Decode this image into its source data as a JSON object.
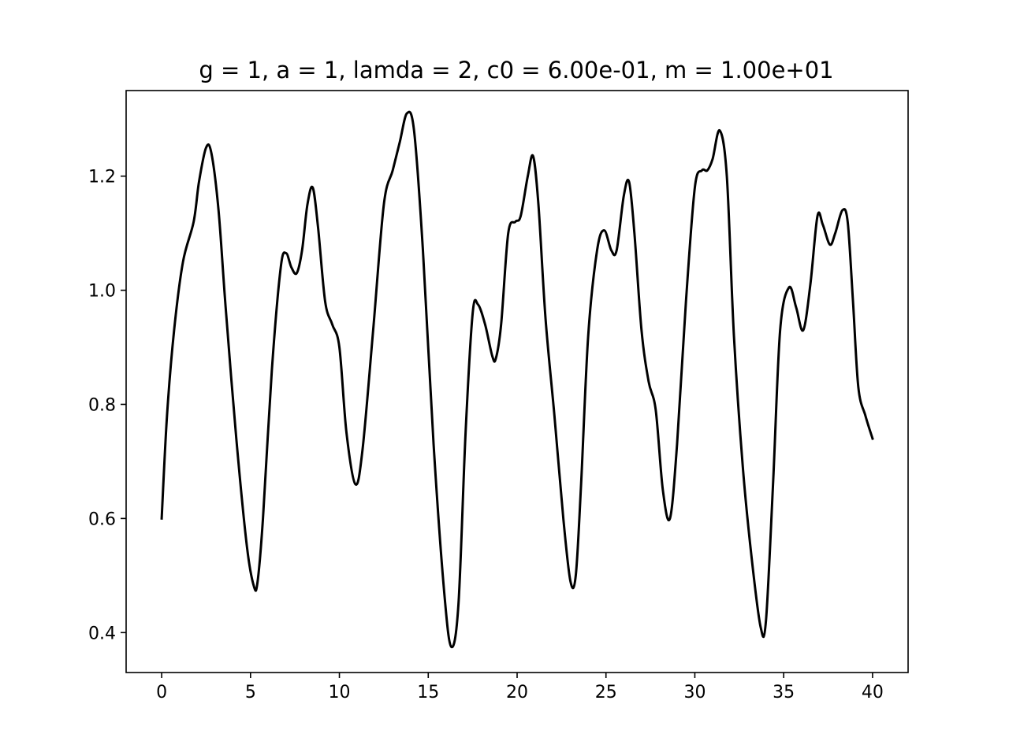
{
  "chart_data": {
    "type": "line",
    "title": "g = 1, a = 1, lamda = 2, c0 = 6.00e-01, m = 1.00e+01",
    "xlabel": "",
    "ylabel": "",
    "xlim": [
      -2,
      42
    ],
    "ylim": [
      0.33,
      1.35
    ],
    "xticks": [
      0,
      5,
      10,
      15,
      20,
      25,
      30,
      35,
      40
    ],
    "xtick_labels": [
      "0",
      "5",
      "10",
      "15",
      "20",
      "25",
      "30",
      "35",
      "40"
    ],
    "yticks": [
      0.4,
      0.6,
      0.8,
      1.0,
      1.2
    ],
    "ytick_labels": [
      "0.4",
      "0.6",
      "0.8",
      "1.0",
      "1.2"
    ],
    "grid": false,
    "legend": false,
    "colors": {
      "line": "#000000",
      "axes": "#000000",
      "background": "#ffffff"
    },
    "series": [
      {
        "x": [
          0,
          0.3,
          0.7,
          1.2,
          1.8,
          2.1,
          2.5,
          2.8,
          3.2,
          3.6,
          4.2,
          4.8,
          5.2,
          5.4,
          5.7,
          6.2,
          6.7,
          7.0,
          7.3,
          7.6,
          7.9,
          8.2,
          8.5,
          8.8,
          9.2,
          9.6,
          10.0,
          10.4,
          10.9,
          11.3,
          11.9,
          12.5,
          13.0,
          13.4,
          13.8,
          14.2,
          14.7,
          15.3,
          15.9,
          16.3,
          16.7,
          17.1,
          17.5,
          17.8,
          18.2,
          18.6,
          18.8,
          19.1,
          19.5,
          19.9,
          20.2,
          20.6,
          20.9,
          21.2,
          21.6,
          22.1,
          22.6,
          23.0,
          23.3,
          23.6,
          24.0,
          24.5,
          24.9,
          25.3,
          25.6,
          26.0,
          26.3,
          26.6,
          27.0,
          27.4,
          27.8,
          28.2,
          28.6,
          29.0,
          29.5,
          30.0,
          30.4,
          30.7,
          31.0,
          31.4,
          31.8,
          32.2,
          32.7,
          33.2,
          33.7,
          34.0,
          34.4,
          34.8,
          35.3,
          35.7,
          36.1,
          36.5,
          36.9,
          37.2,
          37.6,
          37.9,
          38.3,
          38.6,
          38.9,
          39.2,
          39.6,
          40.0
        ],
        "y": [
          0.6,
          0.78,
          0.93,
          1.05,
          1.12,
          1.19,
          1.25,
          1.24,
          1.14,
          0.97,
          0.74,
          0.55,
          0.48,
          0.49,
          0.6,
          0.86,
          1.04,
          1.065,
          1.04,
          1.03,
          1.07,
          1.15,
          1.18,
          1.11,
          0.98,
          0.94,
          0.9,
          0.75,
          0.66,
          0.72,
          0.93,
          1.15,
          1.21,
          1.26,
          1.31,
          1.28,
          1.07,
          0.73,
          0.47,
          0.375,
          0.45,
          0.75,
          0.96,
          0.975,
          0.94,
          0.885,
          0.88,
          0.94,
          1.1,
          1.12,
          1.13,
          1.2,
          1.235,
          1.15,
          0.95,
          0.78,
          0.6,
          0.49,
          0.5,
          0.66,
          0.92,
          1.07,
          1.105,
          1.07,
          1.07,
          1.165,
          1.19,
          1.1,
          0.93,
          0.84,
          0.79,
          0.65,
          0.6,
          0.73,
          0.98,
          1.18,
          1.21,
          1.21,
          1.23,
          1.28,
          1.2,
          0.92,
          0.69,
          0.53,
          0.41,
          0.42,
          0.66,
          0.93,
          1.005,
          0.97,
          0.93,
          1.01,
          1.13,
          1.115,
          1.08,
          1.1,
          1.14,
          1.12,
          0.98,
          0.83,
          0.78,
          0.74
        ]
      }
    ]
  }
}
